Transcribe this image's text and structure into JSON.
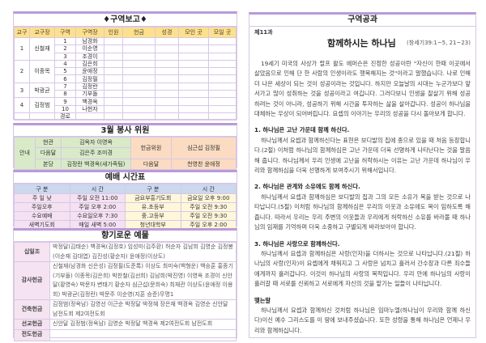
{
  "district_report": {
    "title": "♦구역보고♦",
    "headers": [
      "교구",
      "교구장",
      "구역",
      "구역장",
      "인원",
      "헌금",
      "성경",
      "모인 곳",
      "모일 곳"
    ],
    "parishes": [
      {
        "no": "1",
        "leader": "신철재",
        "rows": [
          [
            "1",
            "남경화"
          ],
          [
            "2",
            "이순영"
          ],
          [
            "3",
            "조경이"
          ]
        ]
      },
      {
        "no": "2",
        "leader": "이종목",
        "rows": [
          [
            "4",
            "김은희"
          ],
          [
            "5",
            "윤애정"
          ],
          [
            "6",
            "김정필"
          ]
        ]
      },
      {
        "no": "3",
        "leader": "박광균",
        "rows": [
          [
            "7",
            "김정란"
          ],
          [
            "8",
            "기부돌"
          ]
        ]
      },
      {
        "no": "4",
        "leader": "김정범",
        "rows": [
          [
            "9",
            "백경옥"
          ],
          [
            "10",
            "나현자"
          ]
        ]
      }
    ],
    "extra_row": "경로"
  },
  "volunteers": {
    "title": "3월 봉사 위원",
    "guide": "안내",
    "rows": [
      [
        "현관",
        "김옥자 이영옥"
      ],
      [
        "다음달",
        "김은주 조미경"
      ],
      [
        "본당",
        "김정란 백경옥(새가족팀)"
      ]
    ],
    "offering_label": "헌금위원",
    "offering_names": "심근섭 김정필",
    "next_label": "다음달",
    "next_names": "천영찬 윤애정"
  },
  "schedule": {
    "title": "예배 시간표",
    "headers": [
      "구  분",
      "시    간",
      "구  분",
      "시    간"
    ],
    "rows": [
      [
        "주 일 낮",
        "주일 오전  11:00",
        "금요부흥기도회",
        "금요일 오후  9:00"
      ],
      [
        "주일오후",
        "주일 오후   2:00",
        "유.초등부",
        "주일 오전   9:30"
      ],
      [
        "수요예배",
        "수요일오후  7:30",
        "중.고등부",
        "주일 오전   9:30"
      ],
      [
        "새벽기도회",
        "매일 새벽   5:00",
        "청년대학부",
        "주일 오후   2:00"
      ]
    ]
  },
  "offerings": {
    "title": "향기로운 예물",
    "rows": [
      {
        "label": "십일조",
        "text": "박정달(김태순) 백경옥(김정호) 임성미(김주환) 허순자 김남희 김영순 김정봉(이순재 김대엽) 김진성(황순자) 윤애정(이상도)"
      },
      {
        "label": "감사헌금",
        "text": "신철재(남경화 신은성) 김정필(도준록) 이상도 최미숙(백형운) 백승훈 홍종기(기부돌) 이종목(김은희) 박찬철(김선희) 김남희(박진영) 이영옥 조경이 신안달(황영숙) 박문자 변태기 황순자 심근섭(문희숙) 최재관 이상도(윤애정 이용희) 박광균(김정란) 박문주 이순영(지훈 승준)무명1"
      },
      {
        "label": "건축헌금",
        "text": "김정범(정옥남) 김영선 이근순 박정달 박정혜 장은재 백경옥 김영순 신안달 남전도회 제2여전도회"
      },
      {
        "label": "선교헌금",
        "text": "신안달 김정범(정옥남) 김영순 박정달 백경옥 제2여전도회 남전도회"
      },
      {
        "label": "전도헌금",
        "text": ""
      }
    ]
  },
  "lesson": {
    "title": "구역공과",
    "number": "제11과",
    "heading": "함께하시는 하나님",
    "reference": "(창세기39:1~5, 21~23)",
    "intro": "19세기 미국의 사상가 랄프 왈도 에머슨은 진정한 성공이란 \"자신이 한때 이곳에서 살았음으로 인해 단 한 사람의 인생이라도 행복해지는 것\"이라고 말했습니다. 나로 인해 더 나은 세상이 되는 것이 성공이라는 것입니다. 하지만 오늘날의 시대는 누군가보다 앞서가고 많이 성취하는 것을 성공이라고 여깁니다. 그러다보니 인생을 잘살기 위해 성공하려는 것이 아니라, 성공하기 위해 시간을 투자하는 삶을 살아갑니다. 성공이 하나님을 대체하는 우상이 되어버립니다. 요셉의 이야기는 우리의 성공을 다시 돌아보게 합니다.",
    "points": [
      {
        "title": "1. 하나님은 고난 가운데 함께 하신다.",
        "text": "하나님께서 요셉과 함께하신다는 표현은 보디발의 집에 종으로 있을 때 처음 등장합니다.(2절) 이처럼 하나님의 함께하심은 고난 가운데 더욱 선명하게 나타난다는 것을 말씀해 줍니다. 하나님께서 우리 인생에 고난을 허락하시는 이유는 고난 가운데 하나님이 우리와 함께하심을 더욱 선명하게 보여주시기 위해서입니다."
      },
      {
        "title": "2. 하나님은 관계와 소유에도 함께 하신다.",
        "text": "하나님께서 요셉과 함께하심은 보디발의 집과 그의 모든 소유가 복을 받는 것으로 나타납니다.(5절) 이처럼 하나님의 함께하심은 우리의 이웃과 소유에도 복이 임하도록 해줍니다. 따라서 우리는 우리 주변의 이웃들과 우리에게 허락하신 소유를 바라볼 때 하나님의 임재를 기억하며 더욱 소중하고 구별되게 바라보아야 합니다."
      },
      {
        "title": "3. 하나님은 사랑으로 함께하신다.",
        "text": "하나님께서 요셉과 함께하심은 사랑(인자)을 더하시는 것으로 나타납니다.(21절) 하나님의 사랑(인자)이 요셉에게 채워지고 그 사랑은 넘치고 흘러서 간수장과 다른 죄수들에게까지 흘러갑니다. 이것이 하나님의 사랑의 목적입니다. 우리 안에 하나님의 사랑이 흘러갈 때 서로를 신뢰하고 서로에게 자신의 것을 맡기는 일들이 나타납니다."
      }
    ],
    "closing_title": "맺는말",
    "closing": "하나님께서 요셉과 함께하신 것처럼 하나님은 임마누엘(하나님이 우리와 함께 하신다)이신 예수 그리스도를 이 땅에 보내주셨습니다. 또한 성령을 통해 하나님은 언제나 우리와 함께하십니다."
  }
}
